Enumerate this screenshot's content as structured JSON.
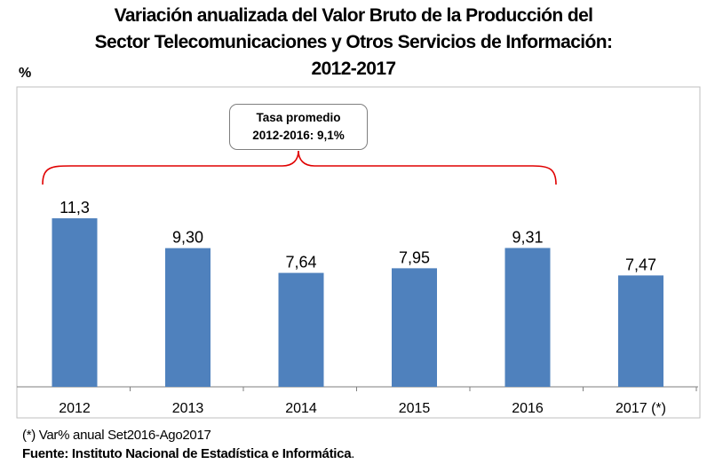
{
  "title_lines": [
    "Variación anualizada del Valor Bruto de la Producción del",
    "Sector Telecomunicaciones y Otros Servicios de Información:",
    "2012-2017"
  ],
  "unit_label": "%",
  "annotation": {
    "line1": "Tasa promedio",
    "line2": "2012-2016: 9,1%",
    "bracket_color": "#e00000"
  },
  "chart_data": {
    "type": "bar",
    "title": "Variación anualizada del Valor Bruto de la Producción del Sector Telecomunicaciones y Otros Servicios de Información: 2012-2017",
    "ylabel": "%",
    "categories": [
      "2012",
      "2013",
      "2014",
      "2015",
      "2016",
      "2017 (*)"
    ],
    "values": [
      11.3,
      9.3,
      7.64,
      7.95,
      9.31,
      7.47
    ],
    "value_labels": [
      "11,3",
      "9,30",
      "7,64",
      "7,95",
      "9,31",
      "7,47"
    ],
    "ylim": [
      0,
      14
    ],
    "grid": false,
    "bar_color": "#4f81bd"
  },
  "footnote": "(*) Var% anual Set2016-Ago2017",
  "source": {
    "label": "Fuente: Instituto Nacional de Estadística e Informática",
    "end": "."
  }
}
